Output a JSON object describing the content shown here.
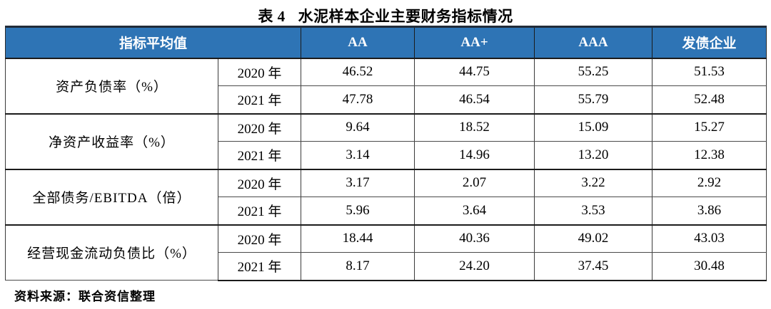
{
  "title": {
    "prefix": "表 4",
    "text": "水泥样本企业主要财务指标情况"
  },
  "table": {
    "header": {
      "merged_label": "指标平均值",
      "columns": [
        "AA",
        "AA+",
        "AAA",
        "发债企业"
      ]
    },
    "groups": [
      {
        "indicator": "资产负债率（%）",
        "rows": [
          {
            "year": "2020 年",
            "values": [
              "46.52",
              "44.75",
              "55.25",
              "51.53"
            ]
          },
          {
            "year": "2021 年",
            "values": [
              "47.78",
              "46.54",
              "55.79",
              "52.48"
            ]
          }
        ]
      },
      {
        "indicator": "净资产收益率（%）",
        "rows": [
          {
            "year": "2020 年",
            "values": [
              "9.64",
              "18.52",
              "15.09",
              "15.27"
            ]
          },
          {
            "year": "2021 年",
            "values": [
              "3.14",
              "14.96",
              "13.20",
              "12.38"
            ]
          }
        ]
      },
      {
        "indicator": "全部债务/EBITDA（倍）",
        "rows": [
          {
            "year": "2020 年",
            "values": [
              "3.17",
              "2.07",
              "3.22",
              "2.92"
            ]
          },
          {
            "year": "2021 年",
            "values": [
              "5.96",
              "3.64",
              "3.53",
              "3.86"
            ]
          }
        ]
      },
      {
        "indicator": "经营现金流动负债比（%）",
        "rows": [
          {
            "year": "2020 年",
            "values": [
              "18.44",
              "40.36",
              "49.02",
              "43.03"
            ]
          },
          {
            "year": "2021 年",
            "values": [
              "8.17",
              "24.20",
              "37.45",
              "30.48"
            ]
          }
        ]
      }
    ]
  },
  "source_note": "资料来源：联合资信整理",
  "colors": {
    "header_bg": "#2E74B5",
    "header_text": "#FFFFFF",
    "table_top_border": "#212C39",
    "body_text": "#000000"
  }
}
